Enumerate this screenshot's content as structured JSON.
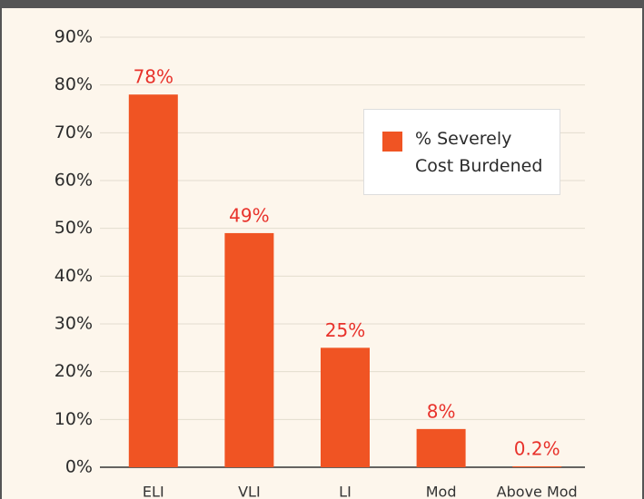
{
  "chart_data": {
    "type": "bar",
    "categories": [
      "ELI",
      "VLI",
      "LI",
      "Mod",
      "Above Mod"
    ],
    "series": [
      {
        "name": "% Severely Cost Burdened",
        "color": "#f05423",
        "values": [
          78,
          49,
          25,
          8,
          0.2
        ],
        "value_labels": [
          "78%",
          "49%",
          "25%",
          "8%",
          "0.2%"
        ]
      }
    ],
    "ylim": [
      0,
      90
    ],
    "yticks": [
      {
        "value": 0,
        "label": "0%"
      },
      {
        "value": 10,
        "label": "10%"
      },
      {
        "value": 20,
        "label": "20%"
      },
      {
        "value": 30,
        "label": "30%"
      },
      {
        "value": 40,
        "label": "40%"
      },
      {
        "value": 50,
        "label": "50%"
      },
      {
        "value": 60,
        "label": "60%"
      },
      {
        "value": 70,
        "label": "70%"
      },
      {
        "value": 80,
        "label": "80%"
      },
      {
        "value": 90,
        "label": "90%"
      }
    ],
    "grid": true,
    "legend": "upper right"
  }
}
